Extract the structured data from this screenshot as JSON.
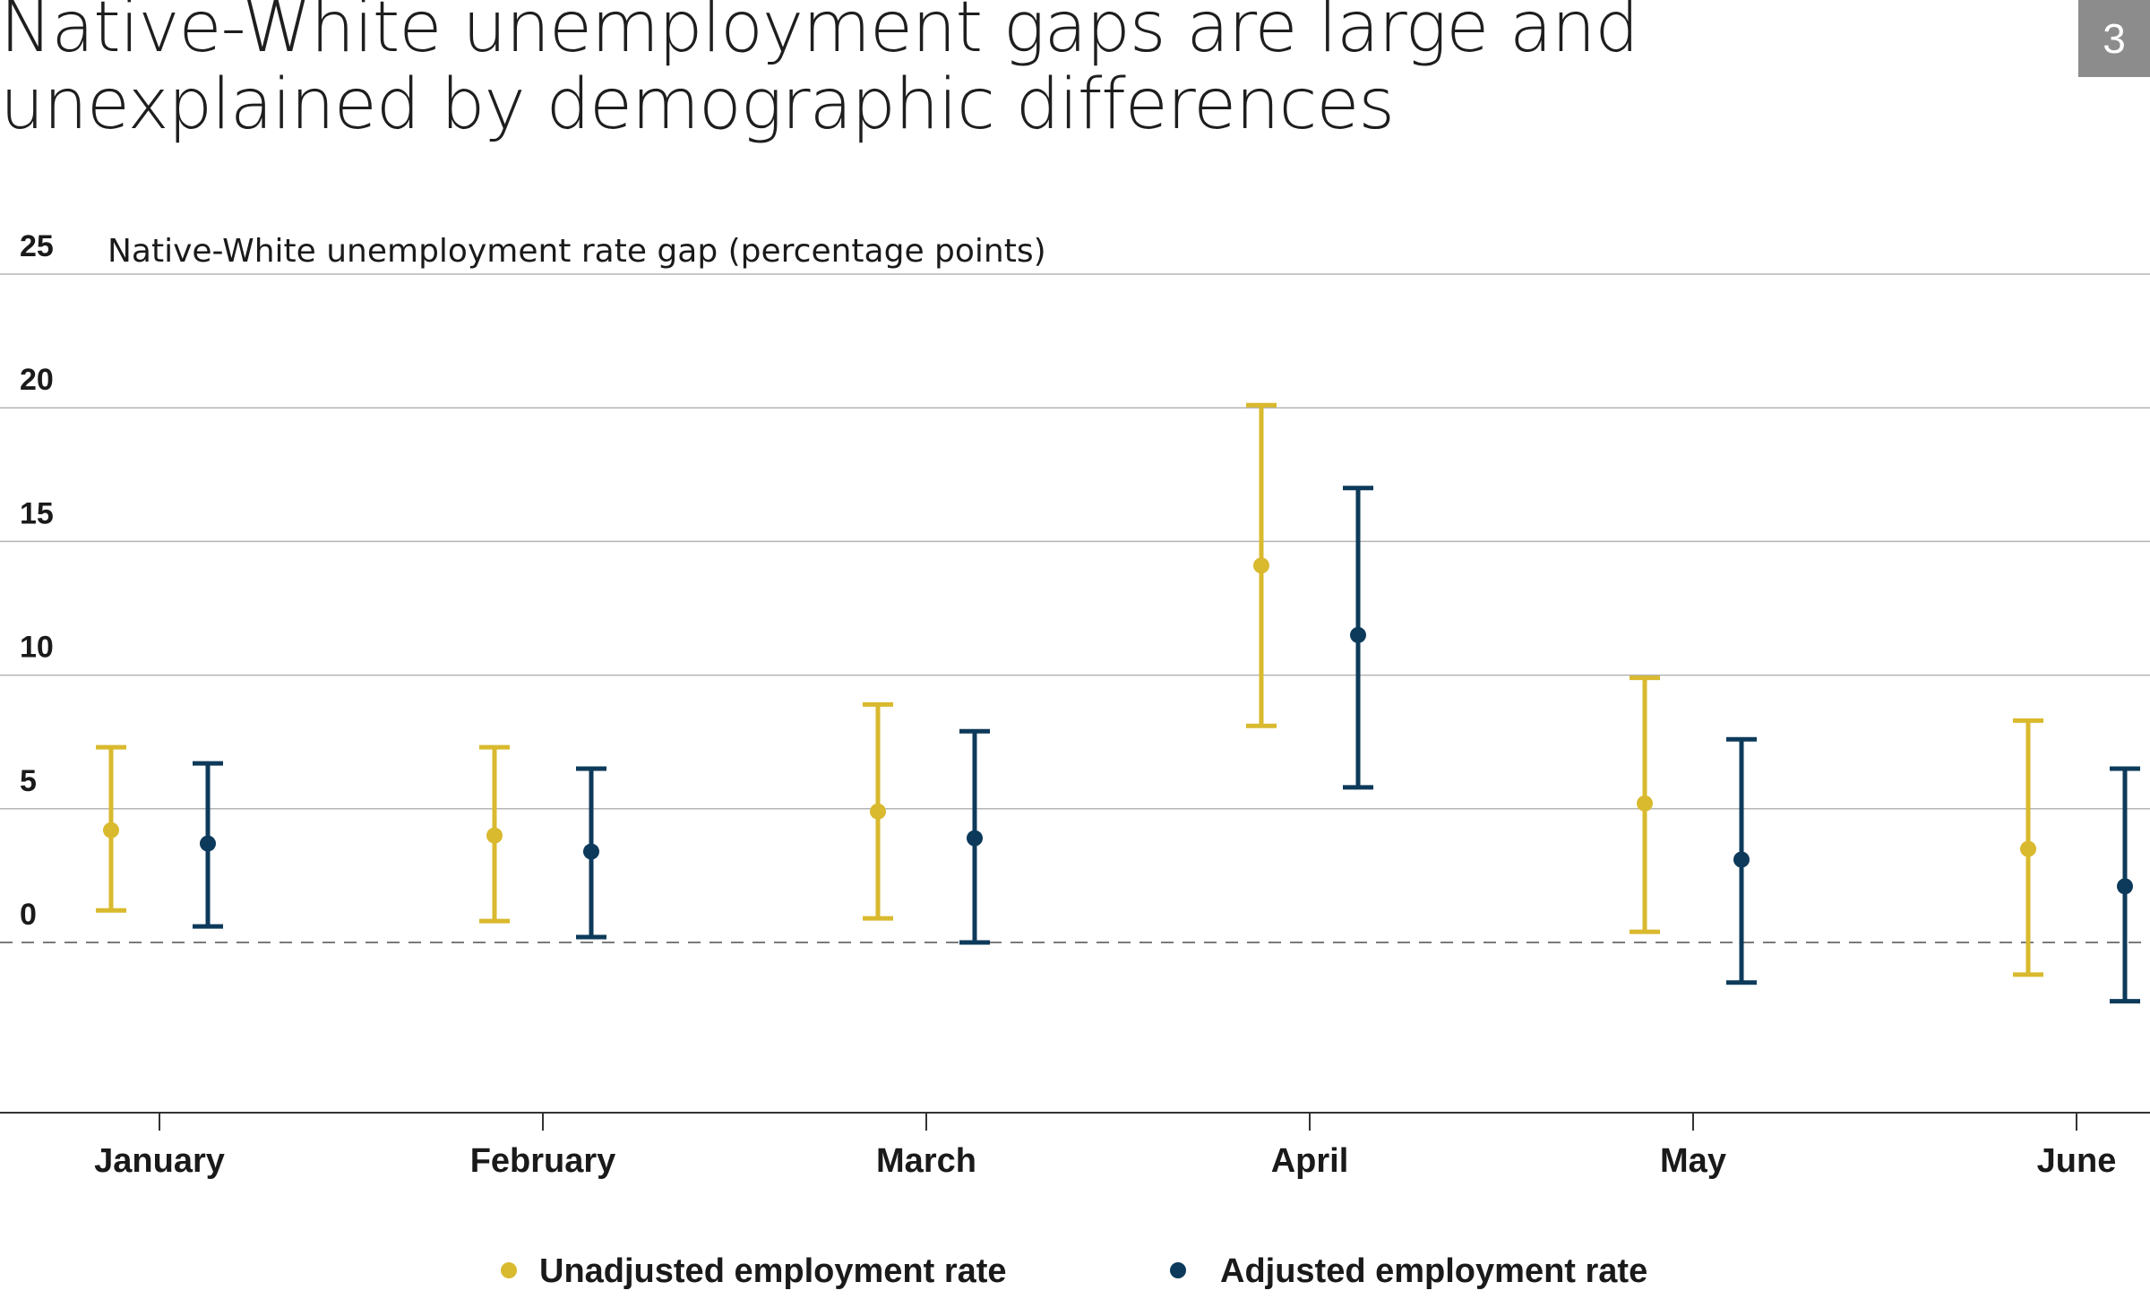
{
  "header": {
    "title": "Native-White unemployment gaps are large and unexplained by demographic differences",
    "page_number": "3"
  },
  "colors": {
    "unadjusted": "#d9b92e",
    "adjusted": "#0d3a5a",
    "grid": "#b5b5b5",
    "zero_line": "#7a7a7a",
    "axis": "#333333"
  },
  "chart_data": {
    "type": "scatter",
    "subtype": "point-with-error-bars",
    "title": "Native-White unemployment gaps are large and unexplained by demographic differences",
    "ylabel": "Native-White unemployment rate gap (percentage points)",
    "xlabel": "",
    "ylim": [
      -6.3,
      25
    ],
    "yticks": [
      "0",
      "5",
      "10",
      "15",
      "20",
      "25"
    ],
    "ytick_values": [
      0,
      5,
      10,
      15,
      20,
      25
    ],
    "categories": [
      "January",
      "February",
      "March",
      "April",
      "May",
      "June"
    ],
    "grid": true,
    "zero_line": "dashed",
    "legend_position": "bottom",
    "series": [
      {
        "name": "Unadjusted employment rate",
        "color": "#d9b92e",
        "values": [
          4.2,
          4.0,
          4.9,
          14.1,
          5.2,
          3.5
        ],
        "lower": [
          1.2,
          0.8,
          0.9,
          8.1,
          0.4,
          -1.2
        ],
        "upper": [
          7.3,
          7.3,
          8.9,
          20.1,
          9.9,
          8.3
        ]
      },
      {
        "name": "Adjusted employment rate",
        "color": "#0d3a5a",
        "values": [
          3.7,
          3.4,
          3.9,
          11.5,
          3.1,
          2.1
        ],
        "lower": [
          0.6,
          0.2,
          0.0,
          5.8,
          -1.5,
          -2.2
        ],
        "upper": [
          6.7,
          6.5,
          7.9,
          17.0,
          7.6,
          6.5
        ]
      }
    ]
  }
}
